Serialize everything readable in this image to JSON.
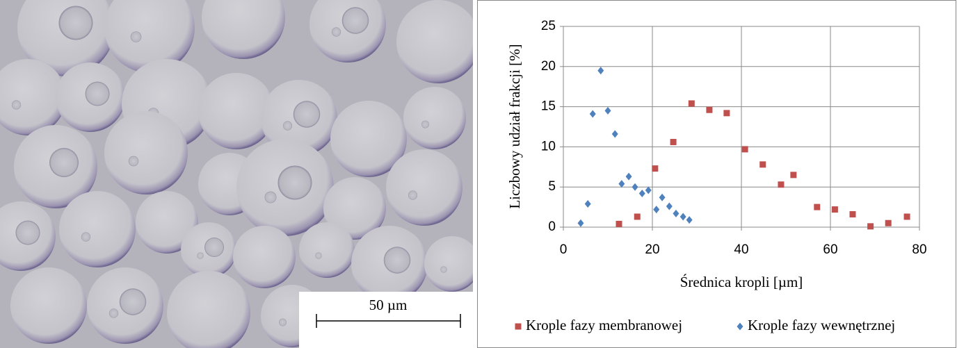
{
  "image": {
    "scale_bar": "50 µm"
  },
  "chart_data": {
    "type": "scatter",
    "x_label": "Średnica kropli [µm]",
    "y_label": "Liczbowy udział frakcji [%]",
    "xlim": [
      0,
      80
    ],
    "xticks": [
      0,
      20,
      40,
      60,
      80
    ],
    "ylim": [
      0,
      25
    ],
    "yticks": [
      0,
      5,
      10,
      15,
      20,
      25
    ],
    "grid": true,
    "legend": "bottom",
    "series": [
      {
        "name": "Krople fazy membranowej",
        "color": "#c0504d",
        "marker": "square",
        "x": [
          12.5,
          16.6,
          20.6,
          24.7,
          28.8,
          32.8,
          36.7,
          40.8,
          44.8,
          48.9,
          51.7,
          57,
          61,
          65,
          69,
          73,
          77.2
        ],
        "values": [
          0.4,
          1.3,
          7.3,
          10.6,
          15.4,
          14.6,
          14.2,
          9.7,
          7.8,
          5.3,
          6.5,
          2.5,
          2.2,
          1.6,
          0.1,
          0.5,
          1.3
        ]
      },
      {
        "name": "Krople fazy wewnętrznej",
        "color": "#4f81bd",
        "marker": "diamond",
        "x": [
          3.9,
          5.5,
          6.6,
          8.4,
          10,
          11.6,
          13.1,
          14.7,
          16.1,
          17.7,
          19.1,
          20.9,
          22.2,
          23.8,
          25.3,
          26.9,
          28.3
        ],
        "values": [
          0.5,
          2.9,
          14.1,
          19.5,
          14.5,
          11.6,
          5.4,
          6.3,
          5.0,
          4.2,
          4.6,
          2.2,
          3.7,
          2.6,
          1.7,
          1.3,
          0.9
        ]
      }
    ]
  }
}
